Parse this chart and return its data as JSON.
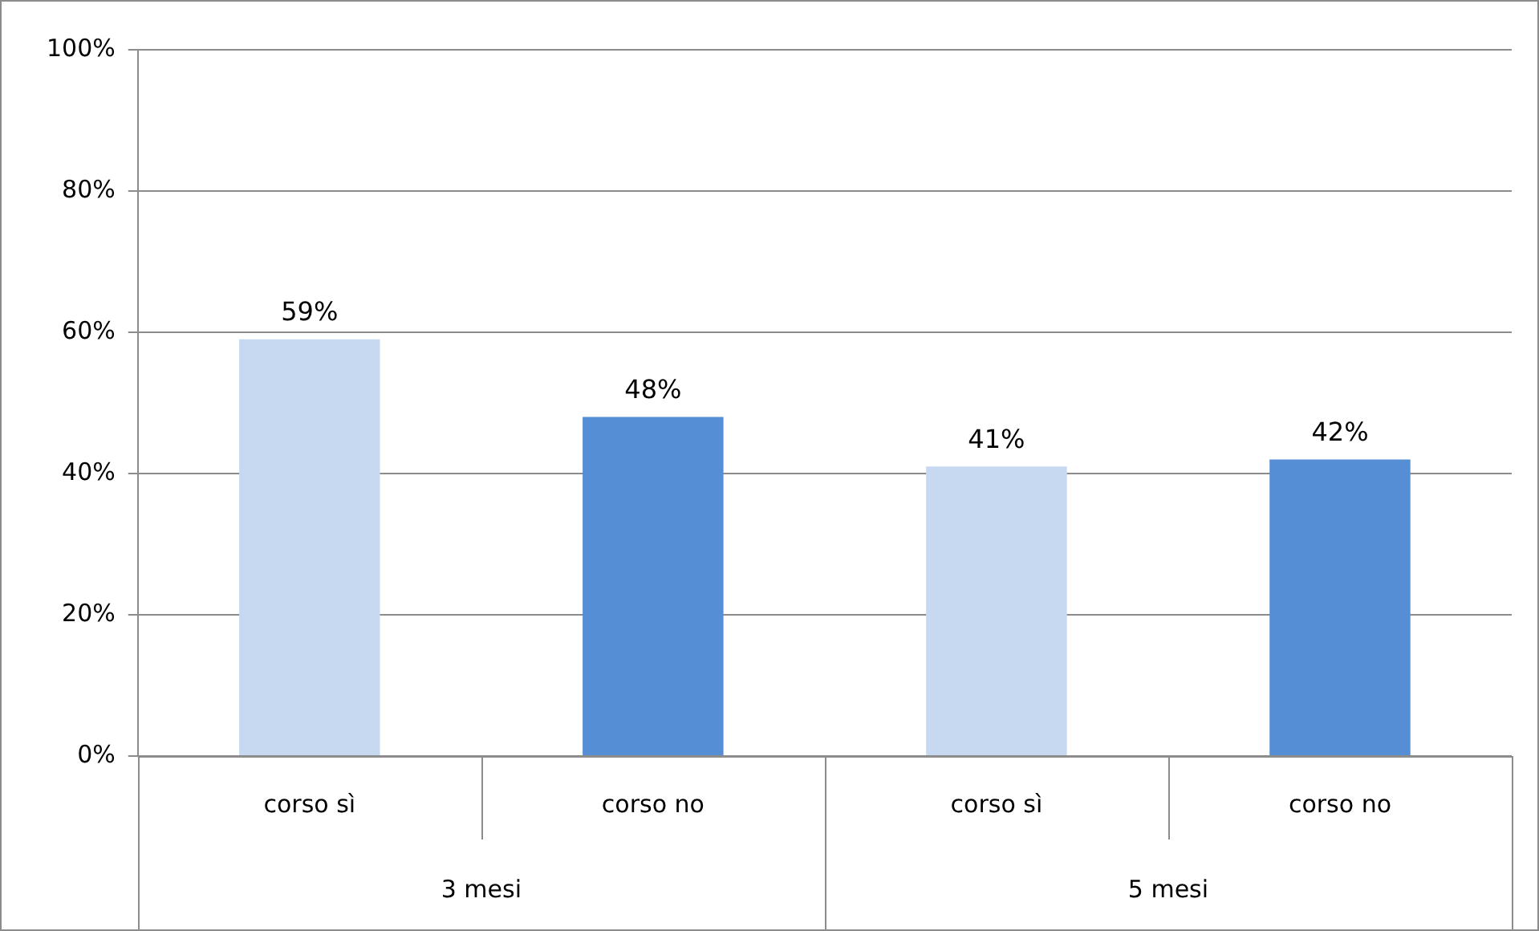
{
  "chart_data": {
    "type": "bar",
    "categories": [
      "corso sì",
      "corso no",
      "corso sì",
      "corso no"
    ],
    "values": [
      59,
      48,
      41,
      42
    ],
    "colors": [
      "#c6d9f1",
      "#558ed5",
      "#c6d9f1",
      "#558ed5"
    ],
    "value_labels": [
      "59%",
      "48%",
      "41%",
      "42%"
    ],
    "ylim": [
      0,
      100
    ],
    "yticks": [
      {
        "value": 0,
        "label": "0%"
      },
      {
        "value": 20,
        "label": "20%"
      },
      {
        "value": 40,
        "label": "40%"
      },
      {
        "value": 60,
        "label": "60%"
      },
      {
        "value": 80,
        "label": "80%"
      },
      {
        "value": 100,
        "label": "100%"
      }
    ],
    "grid": "y",
    "legend": false,
    "annotations": [
      "3 mesi",
      "5 mesi"
    ]
  }
}
